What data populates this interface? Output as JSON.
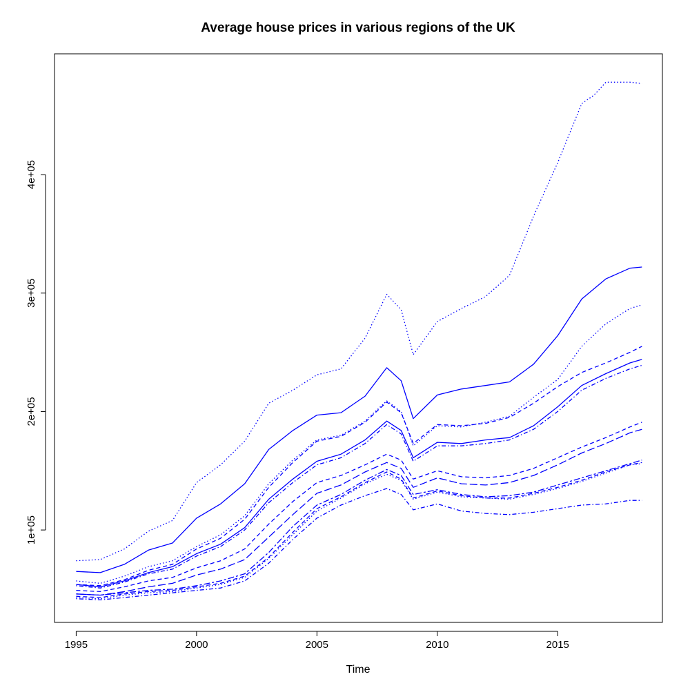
{
  "chart_data": {
    "type": "line",
    "title": "Average house prices in various regions of the UK",
    "xlabel": "Time",
    "ylabel": "",
    "xlim": [
      1994.1,
      2019.35
    ],
    "ylim": [
      22000,
      502000
    ],
    "x_ticks": [
      1995,
      2000,
      2005,
      2010,
      2015
    ],
    "x_tick_labels": [
      "1995",
      "2000",
      "2005",
      "2010",
      "2015"
    ],
    "y_ticks": [
      100000,
      200000,
      300000,
      400000
    ],
    "y_tick_labels": [
      "1e+05",
      "2e+05",
      "3e+05",
      "4e+05"
    ],
    "grid": false,
    "legend": "none",
    "line_color": "#0000ff",
    "series": [
      {
        "dash": "dotted",
        "x": [
          1995,
          1996,
          1997,
          1998,
          1999,
          2000,
          2001,
          2002,
          2003,
          2004,
          2005,
          2006,
          2007,
          2007.9,
          2008.5,
          2009,
          2010,
          2011,
          2012,
          2013,
          2014,
          2015,
          2016,
          2016.5,
          2017,
          2018,
          2018.5
        ],
        "y": [
          74000,
          75000,
          84000,
          99000,
          108000,
          140000,
          155000,
          175000,
          207000,
          218000,
          231000,
          236000,
          262000,
          299000,
          286000,
          248000,
          276000,
          287000,
          297000,
          315000,
          365000,
          410000,
          460000,
          467000,
          478000,
          478000,
          477000
        ]
      },
      {
        "dash": "solid",
        "x": [
          1995,
          1996,
          1997,
          1998,
          1999,
          2000,
          2001,
          2002,
          2003,
          2004,
          2005,
          2006,
          2007,
          2007.9,
          2008.5,
          2009,
          2010,
          2011,
          2012,
          2013,
          2014,
          2015,
          2016,
          2017,
          2018,
          2018.5
        ],
        "y": [
          65000,
          64000,
          71000,
          83000,
          89000,
          110000,
          122000,
          139000,
          168000,
          184000,
          197000,
          199000,
          213000,
          237000,
          226000,
          194000,
          214000,
          219000,
          222000,
          225000,
          240000,
          264000,
          295000,
          312000,
          321000,
          322000
        ]
      },
      {
        "dash": "dotted",
        "x": [
          1995,
          1996,
          1997,
          1998,
          1999,
          2000,
          2001,
          2002,
          2003,
          2004,
          2005,
          2006,
          2007,
          2007.9,
          2008.5,
          2009,
          2010,
          2011,
          2012,
          2013,
          2014,
          2015,
          2016,
          2017,
          2018,
          2018.5
        ],
        "y": [
          57000,
          55000,
          61000,
          69000,
          74000,
          86000,
          96000,
          112000,
          139000,
          159000,
          176000,
          180000,
          192000,
          209000,
          200000,
          171000,
          188000,
          187000,
          191000,
          196000,
          212000,
          227000,
          255000,
          274000,
          287000,
          290000
        ]
      },
      {
        "dash": "dashed",
        "x": [
          1995,
          1996,
          1997,
          1998,
          1999,
          2000,
          2001,
          2002,
          2003,
          2004,
          2005,
          2006,
          2007,
          2007.9,
          2008.5,
          2009,
          2010,
          2011,
          2012,
          2013,
          2014,
          2015,
          2016,
          2017,
          2018,
          2018.5
        ],
        "y": [
          54000,
          53000,
          58000,
          66000,
          71000,
          84000,
          93000,
          109000,
          136000,
          157000,
          175000,
          179000,
          191000,
          208000,
          199000,
          173000,
          189000,
          188000,
          190000,
          195000,
          207000,
          221000,
          233000,
          241000,
          250000,
          255000
        ]
      },
      {
        "dash": "solid",
        "x": [
          1995,
          1996,
          1997,
          1998,
          1999,
          2000,
          2001,
          2002,
          2003,
          2004,
          2005,
          2006,
          2007,
          2007.9,
          2008.5,
          2009,
          2010,
          2011,
          2012,
          2013,
          2014,
          2015,
          2016,
          2017,
          2018,
          2018.5
        ],
        "y": [
          54000,
          52000,
          57000,
          64000,
          69000,
          80000,
          88000,
          102000,
          126000,
          143000,
          158000,
          164000,
          176000,
          192000,
          184000,
          161000,
          174000,
          173000,
          176000,
          178000,
          188000,
          204000,
          222000,
          232000,
          241000,
          244000
        ]
      },
      {
        "dash": "dotdash",
        "x": [
          1995,
          1996,
          1997,
          1998,
          1999,
          2000,
          2001,
          2002,
          2003,
          2004,
          2005,
          2006,
          2007,
          2007.9,
          2008.5,
          2009,
          2010,
          2011,
          2012,
          2013,
          2014,
          2015,
          2016,
          2017,
          2018,
          2018.5
        ],
        "y": [
          53000,
          51000,
          56000,
          63000,
          67000,
          78000,
          86000,
          100000,
          123000,
          140000,
          155000,
          161000,
          173000,
          189000,
          181000,
          158000,
          171000,
          171000,
          173000,
          176000,
          185000,
          200000,
          218000,
          228000,
          236000,
          239000
        ]
      },
      {
        "dash": "dashed",
        "x": [
          1995,
          1996,
          1997,
          1998,
          1999,
          2000,
          2001,
          2002,
          2003,
          2004,
          2005,
          2006,
          2007,
          2007.9,
          2008.5,
          2009,
          2010,
          2011,
          2012,
          2013,
          2014,
          2015,
          2016,
          2017,
          2018,
          2018.5
        ],
        "y": [
          49000,
          48000,
          52000,
          57000,
          60000,
          68000,
          74000,
          84000,
          105000,
          124000,
          140000,
          146000,
          155000,
          164000,
          159000,
          143000,
          150000,
          145000,
          144000,
          146000,
          152000,
          161000,
          170000,
          178000,
          187000,
          191000
        ]
      },
      {
        "dash": "longdash",
        "x": [
          1995,
          1996,
          1997,
          1998,
          1999,
          2000,
          2001,
          2002,
          2003,
          2004,
          2005,
          2006,
          2007,
          2007.9,
          2008.5,
          2009,
          2010,
          2011,
          2012,
          2013,
          2014,
          2015,
          2016,
          2017,
          2018,
          2018.5
        ],
        "y": [
          46000,
          45000,
          48000,
          52000,
          55000,
          62000,
          67000,
          75000,
          94000,
          113000,
          131000,
          138000,
          149000,
          157000,
          152000,
          136000,
          144000,
          139000,
          138000,
          140000,
          146000,
          155000,
          165000,
          173000,
          182000,
          185000
        ]
      },
      {
        "dash": "twodash",
        "x": [
          1995,
          1996,
          1997,
          1998,
          1999,
          2000,
          2001,
          2002,
          2003,
          2004,
          2005,
          2006,
          2007,
          2007.9,
          2008.5,
          2009,
          2010,
          2011,
          2012,
          2013,
          2014,
          2015,
          2016,
          2017,
          2018,
          2018.5
        ],
        "y": [
          46000,
          45000,
          47000,
          49000,
          50000,
          53000,
          57000,
          63000,
          81000,
          103000,
          121000,
          130000,
          142000,
          151000,
          146000,
          130000,
          134000,
          130000,
          128000,
          129000,
          132000,
          138000,
          144000,
          150000,
          156000,
          159000
        ]
      },
      {
        "dash": "dashed",
        "x": [
          1995,
          1996,
          1997,
          1998,
          1999,
          2000,
          2001,
          2002,
          2003,
          2004,
          2005,
          2006,
          2007,
          2007.9,
          2008.5,
          2009,
          2010,
          2011,
          2012,
          2013,
          2014,
          2015,
          2016,
          2017,
          2018,
          2018.5
        ],
        "y": [
          44000,
          43000,
          46000,
          48000,
          49000,
          52000,
          55000,
          61000,
          77000,
          98000,
          118000,
          128000,
          140000,
          149000,
          143000,
          127000,
          133000,
          129000,
          127000,
          127000,
          131000,
          136000,
          142000,
          149000,
          155000,
          157000
        ]
      },
      {
        "dash": "dotted",
        "x": [
          1995,
          1996,
          1997,
          1998,
          1999,
          2000,
          2001,
          2002,
          2003,
          2004,
          2005,
          2006,
          2007,
          2007.9,
          2008.5,
          2009,
          2010,
          2011,
          2012,
          2013,
          2014,
          2015,
          2016,
          2017,
          2018,
          2018.5
        ],
        "y": [
          43000,
          42000,
          45000,
          47000,
          48000,
          51000,
          54000,
          60000,
          76000,
          96000,
          116000,
          127000,
          139000,
          147000,
          142000,
          126000,
          132000,
          128000,
          127000,
          126000,
          130000,
          135000,
          141000,
          148000,
          155000,
          156000
        ]
      },
      {
        "dash": "dotdash",
        "x": [
          1995,
          1996,
          1997,
          1998,
          1999,
          2000,
          2001,
          2002,
          2003,
          2004,
          2005,
          2006,
          2007,
          2007.9,
          2008.5,
          2009,
          2010,
          2011,
          2012,
          2013,
          2014,
          2015,
          2016,
          2017,
          2018,
          2018.5
        ],
        "y": [
          42000,
          41000,
          43000,
          45000,
          47000,
          49000,
          51000,
          57000,
          72000,
          92000,
          110000,
          121000,
          129000,
          135000,
          130000,
          117000,
          122000,
          116000,
          114000,
          113000,
          115000,
          118000,
          121000,
          122000,
          125000,
          125000
        ]
      }
    ]
  }
}
